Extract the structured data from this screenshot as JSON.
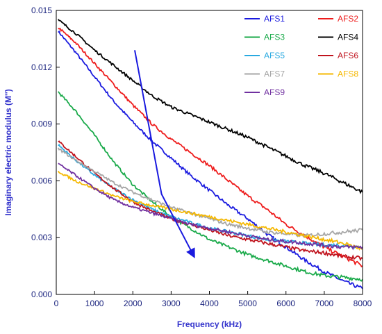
{
  "chart_data": {
    "type": "line",
    "xlabel": "Frequency (kHz)",
    "ylabel": "Imaginary electric modulus (M'')",
    "xlim": [
      0,
      8000
    ],
    "ylim": [
      0,
      0.015
    ],
    "x_ticks": [
      "0",
      "1000",
      "2000",
      "3000",
      "4000",
      "5000",
      "6000",
      "7000",
      "8000"
    ],
    "y_ticks": [
      "0.000",
      "0.003",
      "0.006",
      "0.009",
      "0.012",
      "0.015"
    ],
    "grid": false,
    "legend_position": "top-right",
    "series": [
      {
        "name": "AFS1",
        "color": "#1a1adf",
        "x": [
          50,
          500,
          1000,
          1500,
          2000,
          2500,
          3000,
          3500,
          4000,
          4500,
          5000,
          5500,
          6000,
          6500,
          7000,
          7500,
          8000
        ],
        "y": [
          0.0139,
          0.0128,
          0.0115,
          0.0102,
          0.0091,
          0.0081,
          0.0072,
          0.0063,
          0.0055,
          0.0047,
          0.004,
          0.0032,
          0.0025,
          0.0018,
          0.0012,
          0.0007,
          0.0003
        ]
      },
      {
        "name": "AFS2",
        "color": "#ee1c1c",
        "x": [
          50,
          500,
          1000,
          1500,
          2000,
          2500,
          3000,
          3500,
          4000,
          4500,
          5000,
          5500,
          6000,
          6500,
          7000,
          7500,
          8000
        ],
        "y": [
          0.0141,
          0.0133,
          0.0122,
          0.0111,
          0.01,
          0.009,
          0.0082,
          0.0075,
          0.0068,
          0.006,
          0.0052,
          0.0045,
          0.0037,
          0.0031,
          0.0025,
          0.002,
          0.0015
        ]
      },
      {
        "name": "AFS3",
        "color": "#1aaa4a",
        "x": [
          50,
          500,
          1000,
          1500,
          2000,
          2500,
          3000,
          3500,
          4000,
          4500,
          5000,
          5500,
          6000,
          6500,
          7000,
          7500,
          8000
        ],
        "y": [
          0.0107,
          0.0097,
          0.0084,
          0.007,
          0.0058,
          0.0049,
          0.0041,
          0.0035,
          0.0029,
          0.0025,
          0.0021,
          0.0018,
          0.0015,
          0.0012,
          0.001,
          0.0009,
          0.0008
        ]
      },
      {
        "name": "AFS4",
        "color": "#000000",
        "x": [
          50,
          500,
          1000,
          1500,
          2000,
          2500,
          3000,
          3500,
          4000,
          4500,
          5000,
          5500,
          6000,
          6500,
          7000,
          7500,
          8000
        ],
        "y": [
          0.0145,
          0.0138,
          0.0129,
          0.0121,
          0.0113,
          0.0105,
          0.0099,
          0.0095,
          0.0091,
          0.0087,
          0.0083,
          0.0078,
          0.0073,
          0.0068,
          0.0064,
          0.0059,
          0.0054
        ]
      },
      {
        "name": "AFS5",
        "color": "#29a9e0",
        "x": [
          50,
          500,
          1000,
          1500,
          2000,
          2500,
          3000,
          3500,
          4000,
          4500,
          5000,
          5500,
          6000,
          6500,
          7000,
          7500,
          8000
        ],
        "y": [
          0.0079,
          0.0071,
          0.0063,
          0.0056,
          0.005,
          0.0045,
          0.0041,
          0.0038,
          0.0035,
          0.0033,
          0.0031,
          0.0029,
          0.0028,
          0.0027,
          0.0026,
          0.0026,
          0.0025
        ]
      },
      {
        "name": "AFS6",
        "color": "#c0141e",
        "x": [
          50,
          500,
          1000,
          1500,
          2000,
          2500,
          3000,
          3500,
          4000,
          4500,
          5000,
          5500,
          6000,
          6500,
          7000,
          7500,
          8000
        ],
        "y": [
          0.0081,
          0.0073,
          0.0064,
          0.0056,
          0.0049,
          0.0044,
          0.004,
          0.0037,
          0.0034,
          0.0031,
          0.0029,
          0.0027,
          0.0025,
          0.0023,
          0.0022,
          0.002,
          0.0019
        ]
      },
      {
        "name": "AFS7",
        "color": "#a6a6a6",
        "x": [
          50,
          500,
          1000,
          1500,
          2000,
          2500,
          3000,
          3500,
          4000,
          4500,
          5000,
          5500,
          6000,
          6500,
          7000,
          7500,
          8000
        ],
        "y": [
          0.0077,
          0.0071,
          0.0065,
          0.0059,
          0.0054,
          0.005,
          0.0046,
          0.0043,
          0.004,
          0.0037,
          0.0035,
          0.0033,
          0.0032,
          0.0031,
          0.0032,
          0.0033,
          0.0034
        ]
      },
      {
        "name": "AFS8",
        "color": "#f5b800",
        "x": [
          50,
          500,
          1000,
          1500,
          2000,
          2500,
          3000,
          3500,
          4000,
          4500,
          5000,
          5500,
          6000,
          6500,
          7000,
          7500,
          8000
        ],
        "y": [
          0.0065,
          0.006,
          0.0056,
          0.0052,
          0.0049,
          0.0047,
          0.0045,
          0.0043,
          0.0041,
          0.0039,
          0.0037,
          0.0035,
          0.0033,
          0.0031,
          0.0029,
          0.0027,
          0.0024
        ]
      },
      {
        "name": "AFS9",
        "color": "#7030a0",
        "x": [
          50,
          500,
          1000,
          1500,
          2000,
          2500,
          3000,
          3500,
          4000,
          4500,
          5000,
          5500,
          6000,
          6500,
          7000,
          7500,
          8000
        ],
        "y": [
          0.0069,
          0.0063,
          0.0056,
          0.005,
          0.0046,
          0.0043,
          0.004,
          0.0037,
          0.0035,
          0.0033,
          0.0031,
          0.0029,
          0.0028,
          0.0027,
          0.0026,
          0.0025,
          0.0025
        ]
      }
    ],
    "annotation_arrow": {
      "color": "#1a1adf",
      "from": [
        2050,
        0.0129
      ],
      "bend": [
        2750,
        0.0053
      ],
      "to": [
        3600,
        0.002
      ]
    }
  }
}
